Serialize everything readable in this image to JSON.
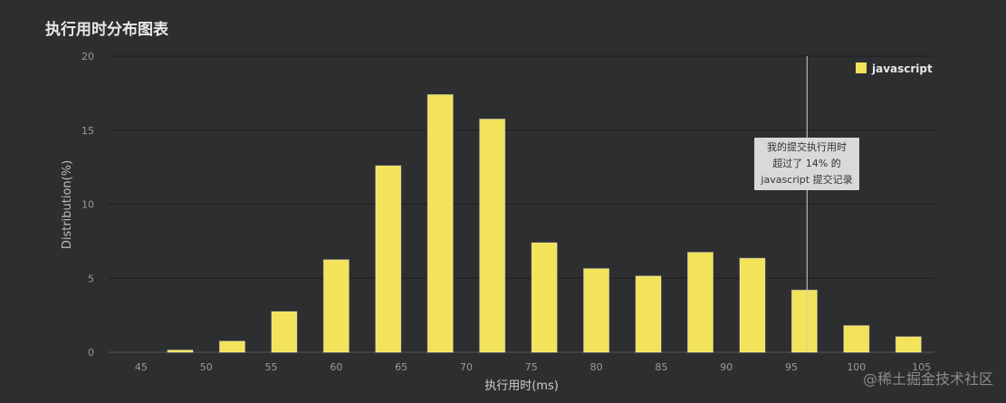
{
  "chart_data": {
    "type": "bar",
    "title": "执行用时分布图表",
    "xlabel": "执行用时(ms)",
    "ylabel": "Distribution(%)",
    "ylim": [
      0,
      20
    ],
    "yticks": [
      "0",
      "5",
      "10",
      "15",
      "20"
    ],
    "xticks": [
      "45",
      "50",
      "55",
      "60",
      "65",
      "70",
      "75",
      "80",
      "85",
      "90",
      "95",
      "100",
      "105"
    ],
    "grid": true,
    "legend_position": "top-right",
    "series": [
      {
        "name": "javascript",
        "color": "#f2e35b",
        "x": [
          48,
          52,
          56,
          60,
          64,
          68,
          72,
          76,
          80,
          84,
          88,
          92,
          96,
          100,
          104
        ],
        "values": [
          0.15,
          0.75,
          2.75,
          6.25,
          12.6,
          17.4,
          15.75,
          7.4,
          5.65,
          5.15,
          6.75,
          6.35,
          4.2,
          1.8,
          1.05
        ]
      }
    ],
    "annotation": {
      "x": 96.2,
      "lines": [
        "我的提交执行用时",
        "超过了 14% 的",
        "javascript 提交记录"
      ]
    }
  },
  "watermark": "@稀土掘金技术社区"
}
